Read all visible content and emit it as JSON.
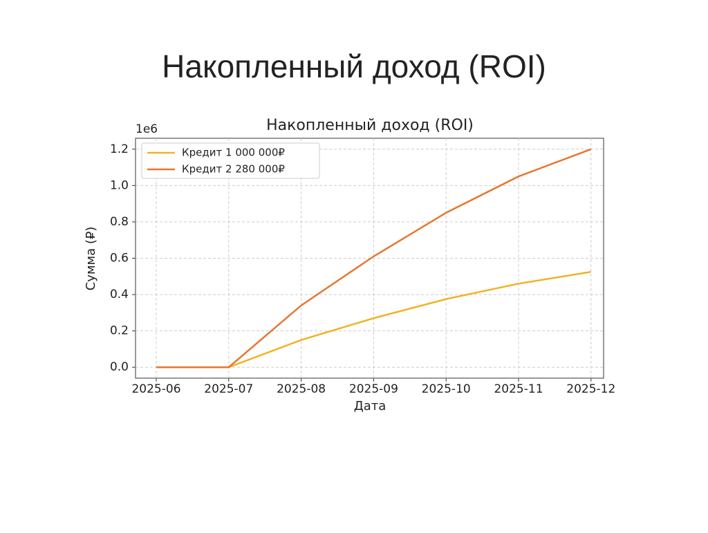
{
  "slide_title": "Накопленный доход (ROI)",
  "chart_data": {
    "type": "line",
    "title": "Накопленный доход (ROI)",
    "xlabel": "Дата",
    "ylabel": "Сумма (₽)",
    "y_offset_label": "1e6",
    "x": [
      "2025-06",
      "2025-07",
      "2025-08",
      "2025-09",
      "2025-10",
      "2025-11",
      "2025-12"
    ],
    "series": [
      {
        "name": "Кредит 1 000 000₽",
        "color": "#f0b323",
        "values": [
          0,
          0,
          0.15,
          0.27,
          0.375,
          0.46,
          0.525
        ]
      },
      {
        "name": "Кредит 2 280 000₽",
        "color": "#e8762d",
        "values": [
          0,
          0,
          0.34,
          0.61,
          0.85,
          1.05,
          1.2
        ]
      }
    ],
    "ylim": [
      -0.06,
      1.26
    ],
    "yticks": [
      {
        "value": 0,
        "label": "0.0"
      },
      0.2,
      0.4,
      0.6,
      0.8,
      {
        "value": 1,
        "label": "1.0"
      },
      1.2
    ],
    "grid": true,
    "legend": "upper left"
  }
}
